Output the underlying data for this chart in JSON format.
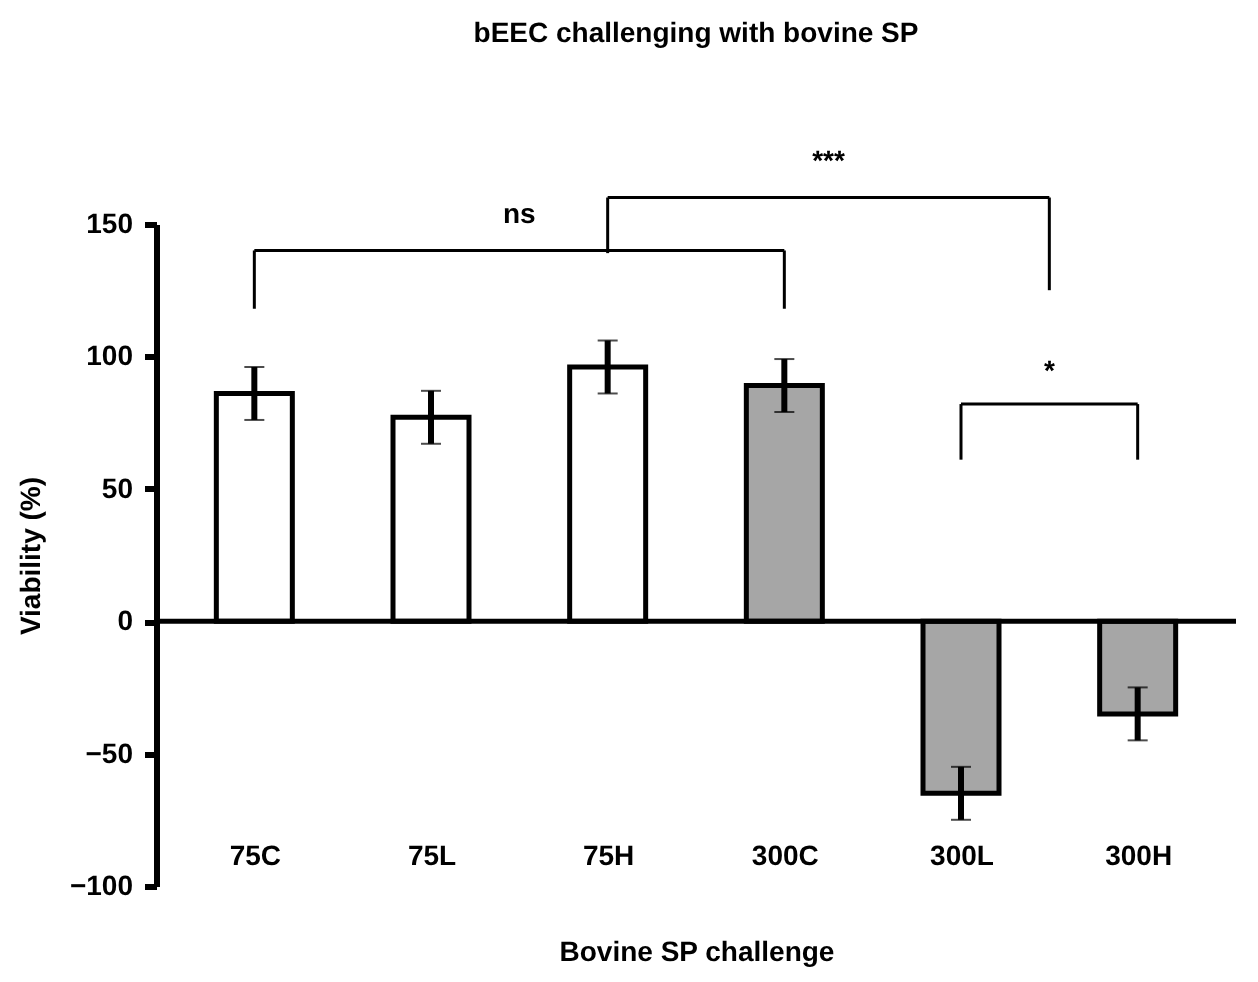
{
  "chart_data": {
    "type": "bar",
    "title": "bEEC challenging with bovine SP",
    "xlabel": "Bovine SP challenge",
    "ylabel": "Viability (%)",
    "categories": [
      "75C",
      "75L",
      "75H",
      "300C",
      "300L",
      "300H"
    ],
    "values": [
      86,
      77,
      96,
      89,
      -65,
      -35
    ],
    "errors": [
      10,
      10,
      10,
      10,
      10,
      10
    ],
    "colors": [
      "#ffffff",
      "#ffffff",
      "#ffffff",
      "#a6a6a6",
      "#a6a6a6",
      "#a6a6a6"
    ],
    "ylim": [
      -100,
      150
    ],
    "yticks": [
      -100,
      -50,
      0,
      50,
      100,
      150
    ],
    "annotations": [
      "ns",
      "***",
      "*"
    ]
  }
}
